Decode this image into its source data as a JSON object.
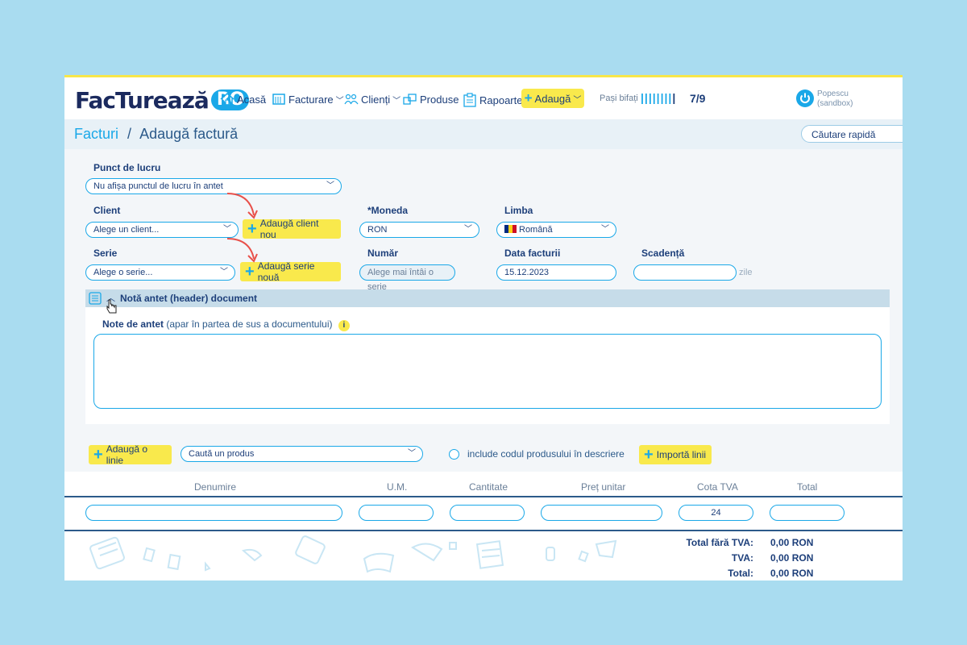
{
  "brand": {
    "name": "FacTurează",
    "suffix": "RO"
  },
  "nav": {
    "acasa": "Acasă",
    "facturare": "Facturare",
    "clienti": "Clienți",
    "produse": "Produse",
    "rapoarte": "Rapoarte",
    "adauga": "Adaugă"
  },
  "progress": {
    "label": "Pași bifați",
    "bars": "||||||||",
    "done_bar": "|",
    "value": "7/9",
    "steps_done": 7,
    "steps_total": 9
  },
  "user": {
    "name": "Popescu",
    "mode": "(sandbox)"
  },
  "breadcrumb": {
    "root": "Facturi",
    "separator": "/",
    "current": "Adaugă factură"
  },
  "search": {
    "placeholder": "Căutare rapidă"
  },
  "form": {
    "punct_label": "Punct de lucru",
    "punct_value": "Nu afișa punctul de lucru în antet",
    "client_label": "Client",
    "client_value": "Alege un client...",
    "add_client": "Adaugă client nou",
    "moneda_label": "*Moneda",
    "moneda_value": "RON",
    "limba_label": "Limba",
    "limba_value": "Română",
    "serie_label": "Serie",
    "serie_value": "Alege o serie...",
    "add_serie": "Adaugă serie nouă",
    "numar_label": "Număr",
    "numar_value": "Alege mai întâi o serie",
    "data_label": "Data facturii",
    "data_value": "15.12.2023",
    "scadenta_label": "Scadență",
    "scadenta_value": "",
    "scadenta_unit": "zile"
  },
  "header_note": {
    "section_title": "Notă antet (header) document",
    "label": "Note de antet",
    "hint": "(apar în partea de sus a documentului)",
    "info": "i"
  },
  "lines": {
    "add_line": "Adaugă o linie",
    "product_search": "Caută un produs",
    "include_code": "include codul produsului în descriere",
    "import": "Importă linii"
  },
  "table": {
    "columns": [
      "Denumire",
      "U.M.",
      "Cantitate",
      "Preț unitar",
      "Cota TVA",
      "Total"
    ],
    "row": {
      "cota_tva": "24"
    }
  },
  "totals": {
    "fara_tva_label": "Total fără TVA:",
    "fara_tva_value": "0,00 RON",
    "tva_label": "TVA:",
    "tva_value": "0,00 RON",
    "total_label": "Total:",
    "total_value": "0,00 RON"
  },
  "colors": {
    "accent": "#1aa8e8",
    "highlight": "#f9e94c",
    "navy": "#1d3f7a",
    "background": "#a9dcf0",
    "arrow": "#e8504a"
  }
}
